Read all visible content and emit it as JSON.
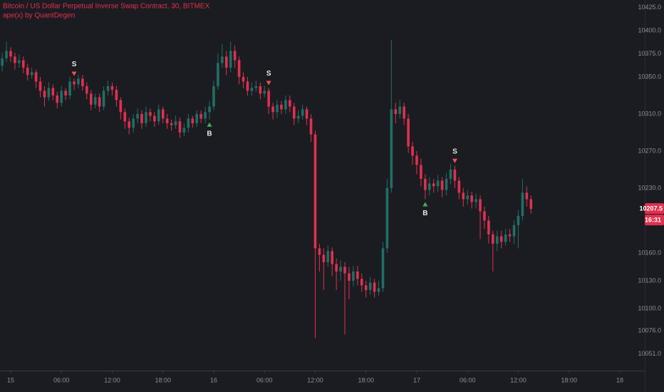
{
  "chart_data": {
    "type": "candlestick",
    "title": "Bitcoin / US Dollar Perpetual Inverse Swap Contract, 30, BITMEX",
    "subtitle": "ape(x) by QuantDegen",
    "countdown": "16:31",
    "up_color": "#1f6f66",
    "down_color": "#e0304e",
    "signal_colors": {
      "S": "#ef5350",
      "B": "#4caf50"
    },
    "x": [
      -1,
      -0.5,
      0,
      0.5,
      1,
      1.5,
      2,
      2.5,
      3,
      3.5,
      4,
      4.5,
      5,
      5.5,
      6,
      6.5,
      7,
      7.5,
      8,
      8.5,
      9,
      9.5,
      10,
      10.5,
      11,
      11.5,
      12,
      12.5,
      13,
      13.5,
      14,
      14.5,
      15,
      15.5,
      16,
      16.5,
      17,
      17.5,
      18,
      18.5,
      19,
      19.5,
      20,
      20.5,
      21,
      21.5,
      22,
      22.5,
      23,
      23.5,
      24,
      24.5,
      25,
      25.5,
      26,
      26.5,
      27,
      27.5,
      28,
      28.5,
      29,
      29.5,
      30,
      30.5,
      31,
      31.5,
      32,
      32.5,
      33,
      33.5,
      34,
      34.5,
      35,
      35.5,
      36,
      36.5,
      37,
      37.5,
      38,
      38.5,
      39,
      39.5,
      40,
      40.5,
      41,
      41.5,
      42,
      42.5,
      43,
      43.5,
      44,
      44.5,
      45,
      45.5,
      46,
      46.5,
      47,
      47.5,
      48,
      48.5,
      49,
      49.5,
      50,
      50.5,
      51,
      51.5,
      52,
      52.5,
      53,
      53.5,
      54,
      54.5,
      55,
      55.5,
      56,
      56.5,
      57,
      57.5,
      58,
      58.5,
      59,
      59.5,
      60,
      60.5,
      61,
      61.5
    ],
    "open": [
      10362,
      10370,
      10378,
      10372,
      10365,
      10368,
      10360,
      10352,
      10355,
      10345,
      10335,
      10328,
      10338,
      10330,
      10322,
      10335,
      10330,
      10345,
      10342,
      10348,
      10340,
      10332,
      10320,
      10328,
      10318,
      10335,
      10340,
      10336,
      10325,
      10312,
      10302,
      10295,
      10305,
      10310,
      10300,
      10312,
      10308,
      10302,
      10315,
      10305,
      10300,
      10298,
      10302,
      10290,
      10295,
      10305,
      10300,
      10310,
      10305,
      10312,
      10318,
      10340,
      10365,
      10372,
      10360,
      10378,
      10368,
      10350,
      10345,
      10335,
      10338,
      10340,
      10332,
      10335,
      10318,
      10312,
      10320,
      10315,
      10325,
      10318,
      10305,
      10308,
      10315,
      10305,
      10288,
      10165,
      10158,
      10150,
      10162,
      10148,
      10140,
      10145,
      10138,
      10130,
      10140,
      10132,
      10125,
      10120,
      10128,
      10118,
      10122,
      10165,
      10230,
      10315,
      10310,
      10318,
      10305,
      10275,
      10265,
      10255,
      10240,
      10228,
      10235,
      10232,
      10238,
      10228,
      10240,
      10250,
      10238,
      10225,
      10218,
      10222,
      10215,
      10218,
      10205,
      10195,
      10180,
      10170,
      10178,
      10172,
      10180,
      10178,
      10190,
      10200,
      10225,
      10218
    ],
    "high": [
      10376,
      10388,
      10382,
      10376,
      10374,
      10372,
      10364,
      10360,
      10358,
      10350,
      10340,
      10344,
      10342,
      10334,
      10340,
      10338,
      10350,
      10348,
      10352,
      10352,
      10344,
      10336,
      10332,
      10332,
      10340,
      10346,
      10344,
      10340,
      10328,
      10316,
      10306,
      10310,
      10316,
      10314,
      10318,
      10316,
      10312,
      10320,
      10318,
      10310,
      10304,
      10308,
      10306,
      10300,
      10310,
      10308,
      10314,
      10314,
      10318,
      10324,
      10346,
      10375,
      10385,
      10378,
      10388,
      10384,
      10372,
      10355,
      10350,
      10344,
      10346,
      10344,
      10340,
      10338,
      10322,
      10325,
      10324,
      10330,
      10330,
      10322,
      10314,
      10320,
      10318,
      10310,
      10292,
      10170,
      10165,
      10168,
      10166,
      10154,
      10152,
      10150,
      10145,
      10146,
      10146,
      10138,
      10130,
      10134,
      10132,
      10130,
      10172,
      10240,
      10390,
      10322,
      10325,
      10322,
      10310,
      10280,
      10270,
      10262,
      10245,
      10242,
      10240,
      10244,
      10242,
      10246,
      10256,
      10254,
      10242,
      10230,
      10228,
      10226,
      10224,
      10222,
      10210,
      10200,
      10184,
      10184,
      10184,
      10186,
      10186,
      10195,
      10206,
      10240,
      10232,
      10222
    ],
    "low": [
      10356,
      10366,
      10366,
      10358,
      10360,
      10354,
      10346,
      10348,
      10338,
      10328,
      10318,
      10324,
      10325,
      10316,
      10318,
      10325,
      10326,
      10336,
      10338,
      10335,
      10326,
      10314,
      10316,
      10312,
      10314,
      10330,
      10330,
      10318,
      10304,
      10294,
      10288,
      10290,
      10300,
      10294,
      10296,
      10302,
      10296,
      10298,
      10300,
      10294,
      10292,
      10294,
      10284,
      10286,
      10290,
      10295,
      10296,
      10300,
      10300,
      10304,
      10314,
      10336,
      10360,
      10352,
      10355,
      10360,
      10342,
      10338,
      10330,
      10330,
      10334,
      10326,
      10328,
      10310,
      10304,
      10306,
      10310,
      10310,
      10312,
      10298,
      10300,
      10304,
      10298,
      10280,
      10068,
      10140,
      10120,
      10145,
      10135,
      10120,
      10130,
      10072,
      10110,
      10124,
      10125,
      10118,
      10112,
      10115,
      10112,
      10114,
      10118,
      10160,
      10225,
      10300,
      10305,
      10298,
      10268,
      10255,
      10245,
      10232,
      10218,
      10222,
      10225,
      10226,
      10220,
      10222,
      10234,
      10230,
      10218,
      10210,
      10212,
      10208,
      10208,
      10175,
      10186,
      10170,
      10140,
      10162,
      10165,
      10168,
      10172,
      10170,
      10165,
      10195,
      10210,
      10202
    ],
    "close": [
      10370,
      10378,
      10372,
      10365,
      10368,
      10360,
      10352,
      10355,
      10345,
      10335,
      10328,
      10338,
      10330,
      10322,
      10335,
      10330,
      10345,
      10342,
      10348,
      10340,
      10332,
      10320,
      10328,
      10318,
      10335,
      10340,
      10336,
      10325,
      10312,
      10302,
      10295,
      10305,
      10310,
      10300,
      10312,
      10308,
      10302,
      10315,
      10305,
      10300,
      10298,
      10302,
      10290,
      10295,
      10305,
      10300,
      10310,
      10305,
      10312,
      10318,
      10340,
      10365,
      10372,
      10360,
      10378,
      10368,
      10350,
      10345,
      10335,
      10338,
      10340,
      10332,
      10335,
      10318,
      10312,
      10320,
      10315,
      10325,
      10318,
      10305,
      10308,
      10315,
      10305,
      10288,
      10165,
      10158,
      10150,
      10162,
      10148,
      10140,
      10145,
      10138,
      10130,
      10140,
      10132,
      10125,
      10120,
      10128,
      10118,
      10122,
      10165,
      10230,
      10315,
      10310,
      10318,
      10305,
      10275,
      10265,
      10255,
      10240,
      10228,
      10235,
      10232,
      10238,
      10228,
      10240,
      10250,
      10238,
      10225,
      10218,
      10222,
      10215,
      10218,
      10205,
      10195,
      10180,
      10170,
      10178,
      10172,
      10180,
      10178,
      10190,
      10200,
      10225,
      10218,
      10207.5
    ],
    "signals": [
      {
        "label": "S",
        "x": 7.5
      },
      {
        "label": "B",
        "x": 23.5
      },
      {
        "label": "S",
        "x": 30.5
      },
      {
        "label": "B",
        "x": 49
      },
      {
        "label": "S",
        "x": 52.5
      }
    ],
    "xlim": [
      -1.26,
      74.95
    ],
    "xticks": [
      {
        "value": 0,
        "label": "15"
      },
      {
        "value": 6,
        "label": "06:00"
      },
      {
        "value": 12,
        "label": "12:00"
      },
      {
        "value": 18,
        "label": "18:00"
      },
      {
        "value": 24,
        "label": "16"
      },
      {
        "value": 30,
        "label": "06:00"
      },
      {
        "value": 36,
        "label": "12:00"
      },
      {
        "value": 42,
        "label": "18:00"
      },
      {
        "value": 48,
        "label": "17"
      },
      {
        "value": 54,
        "label": "06:00"
      },
      {
        "value": 60,
        "label": "12:00"
      },
      {
        "value": 66,
        "label": "18:00"
      },
      {
        "value": 72,
        "label": "18"
      }
    ],
    "ylim": [
      10033,
      10433
    ],
    "yticks": [
      {
        "value": 10425,
        "label": "10425.0"
      },
      {
        "value": 10400,
        "label": "10400.0"
      },
      {
        "value": 10375,
        "label": "10375.0"
      },
      {
        "value": 10350,
        "label": "10350.0"
      },
      {
        "value": 10310,
        "label": "10310.0"
      },
      {
        "value": 10270,
        "label": "10270.0"
      },
      {
        "value": 10230,
        "label": "10230.0"
      },
      {
        "value": 10160,
        "label": "10160.0"
      },
      {
        "value": 10130,
        "label": "10130.0"
      },
      {
        "value": 10100,
        "label": "10100.0"
      },
      {
        "value": 10076,
        "label": "10076.0"
      },
      {
        "value": 10051,
        "label": "10051.0"
      }
    ]
  }
}
